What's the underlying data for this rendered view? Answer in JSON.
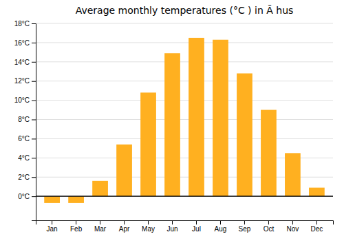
{
  "chart_data": {
    "type": "bar",
    "title": "Average monthly temperatures (°C ) in Ã hus",
    "categories": [
      "Jan",
      "Feb",
      "Mar",
      "Apr",
      "May",
      "Jun",
      "Jul",
      "Aug",
      "Sep",
      "Oct",
      "Nov",
      "Dec"
    ],
    "values": [
      -0.7,
      -0.7,
      1.6,
      5.4,
      10.8,
      14.9,
      16.5,
      16.3,
      12.8,
      9.0,
      4.5,
      0.9
    ],
    "color": "#FFB020",
    "ylim": [
      -2.5,
      18.0
    ],
    "yticks": [
      {
        "value": 0,
        "label": "0°C"
      },
      {
        "value": 2,
        "label": "2°C"
      },
      {
        "value": 4,
        "label": "4°C"
      },
      {
        "value": 6,
        "label": "6°C"
      },
      {
        "value": 8,
        "label": "8°C"
      },
      {
        "value": 10,
        "label": "10°C"
      },
      {
        "value": 12,
        "label": "12°C"
      },
      {
        "value": 14,
        "label": "14°C"
      },
      {
        "value": 16,
        "label": "16°C"
      },
      {
        "value": 18,
        "label": "18°C"
      }
    ],
    "grid": true
  }
}
